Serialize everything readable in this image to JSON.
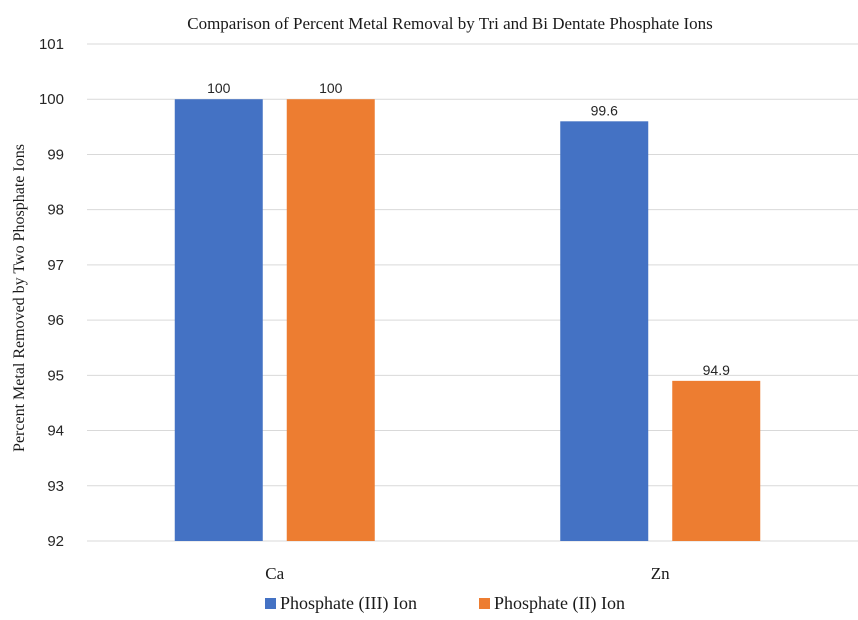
{
  "chart_data": {
    "type": "bar",
    "title": "Comparison of Percent Metal Removal by Tri and Bi Dentate Phosphate Ions",
    "xlabel": "",
    "ylabel": "Percent Metal Removed by Two Phosphate Ions",
    "categories": [
      "Ca",
      "Zn"
    ],
    "series": [
      {
        "name": "Phosphate (III)  Ion",
        "values": [
          100,
          99.6
        ],
        "labels": [
          "100",
          "99.6"
        ],
        "color": "#4472C4"
      },
      {
        "name": "Phosphate (II)  Ion",
        "values": [
          100,
          94.9
        ],
        "labels": [
          "100",
          "94.9"
        ],
        "color": "#ED7D31"
      }
    ],
    "ylim": [
      92,
      101
    ],
    "yticks": [
      "92",
      "93",
      "94",
      "95",
      "96",
      "97",
      "98",
      "99",
      "100",
      "101"
    ],
    "grid": true,
    "legend_position": "bottom"
  }
}
